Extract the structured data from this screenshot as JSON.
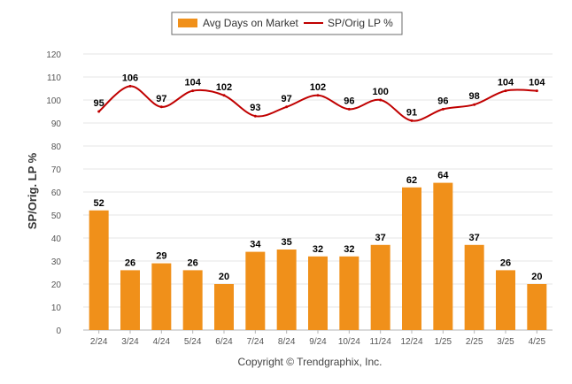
{
  "chart_data": {
    "type": "bar",
    "categories": [
      "2/24",
      "3/24",
      "4/24",
      "5/24",
      "6/24",
      "7/24",
      "8/24",
      "9/24",
      "10/24",
      "11/24",
      "12/24",
      "1/25",
      "2/25",
      "3/25",
      "4/25"
    ],
    "series": [
      {
        "name": "Avg Days on Market",
        "type": "bar",
        "color": "#f0901a",
        "values": [
          52,
          26,
          29,
          26,
          20,
          34,
          35,
          32,
          32,
          37,
          62,
          64,
          37,
          26,
          20
        ]
      },
      {
        "name": "SP/Orig LP %",
        "type": "line",
        "color": "#c00000",
        "values": [
          95,
          106,
          97,
          104,
          102,
          93,
          97,
          102,
          96,
          100,
          91,
          96,
          98,
          104,
          104
        ]
      }
    ],
    "ylabel": "SP/Orig. LP %",
    "ylim": [
      0,
      120
    ],
    "yticks": [
      0,
      10,
      20,
      30,
      40,
      50,
      60,
      70,
      80,
      90,
      100,
      110,
      120
    ],
    "grid": true,
    "legend_position": "top-center"
  },
  "legend": {
    "bar_label": "Avg Days on Market",
    "line_label": "SP/Orig LP %"
  },
  "footer": {
    "copyright": "Copyright © Trendgraphix, Inc."
  }
}
